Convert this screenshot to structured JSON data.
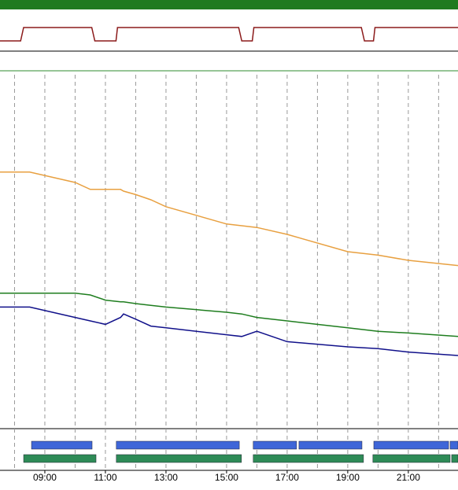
{
  "chart_data": [
    {
      "type": "line",
      "xlim": [
        7.52,
        22.64
      ],
      "ylim": [
        0,
        1
      ],
      "x": [
        7.52,
        8.2,
        8.3,
        10.55,
        10.65,
        11.35,
        11.4,
        15.4,
        15.5,
        15.85,
        15.9,
        19.45,
        19.55,
        19.85,
        19.9,
        22.64
      ],
      "series": [
        {
          "color": "#8b1a1a",
          "values": [
            0,
            0,
            1,
            1,
            0,
            0,
            1,
            1,
            0,
            0,
            1,
            1,
            0,
            0,
            1,
            1
          ]
        }
      ]
    },
    {
      "type": "line",
      "xlim": [
        7.52,
        22.64
      ],
      "ylim": [
        0,
        100
      ],
      "xgrid": [
        8,
        9,
        10,
        11,
        12,
        13,
        14,
        15,
        16,
        17,
        18,
        19,
        20,
        21,
        22
      ],
      "x": [
        7.52,
        8.5,
        10,
        10.5,
        11,
        11.5,
        11.6,
        12,
        12.5,
        13,
        15,
        15.5,
        16,
        17,
        19,
        20,
        21,
        22.64
      ],
      "series": [
        {
          "color": "#e8a040",
          "values": [
            73,
            73,
            70,
            68,
            68,
            68,
            67.5,
            66.5,
            65,
            63,
            58,
            57.5,
            57,
            55,
            50,
            49,
            47.5,
            46
          ]
        },
        {
          "color": "#1e7d1e",
          "values": [
            38,
            38,
            38,
            37.5,
            36,
            35.5,
            35.5,
            35,
            34.5,
            34,
            32.5,
            32,
            31,
            30,
            28,
            27,
            26.5,
            25.5
          ]
        },
        {
          "color": "#10108a",
          "values": [
            34,
            34,
            31,
            30,
            29,
            31,
            32,
            30.5,
            28.5,
            28,
            26,
            25.5,
            27,
            24,
            22.5,
            22,
            21,
            20
          ]
        }
      ]
    },
    {
      "type": "gantt",
      "xlim": [
        7.52,
        22.64
      ],
      "xticks": [
        {
          "value": 9,
          "label": "09:00"
        },
        {
          "value": 11,
          "label": "11:00"
        },
        {
          "value": 13,
          "label": "13:00"
        },
        {
          "value": 15,
          "label": "15:00"
        },
        {
          "value": 17,
          "label": "17:00"
        },
        {
          "value": 19,
          "label": "19:00"
        },
        {
          "value": 21,
          "label": "21:00"
        }
      ],
      "rows": [
        {
          "color": "#3f66d8",
          "intervals": [
            [
              8.56,
              10.56
            ],
            [
              11.36,
              15.42
            ],
            [
              15.88,
              17.31
            ],
            [
              17.39,
              19.47
            ],
            [
              19.86,
              22.33
            ],
            [
              22.38,
              22.64
            ]
          ]
        },
        {
          "color": "#2e8b57",
          "intervals": [
            [
              8.3,
              10.69
            ],
            [
              11.36,
              15.49
            ],
            [
              15.88,
              19.52
            ],
            [
              19.83,
              22.38
            ],
            [
              22.43,
              22.64
            ]
          ]
        }
      ]
    }
  ]
}
